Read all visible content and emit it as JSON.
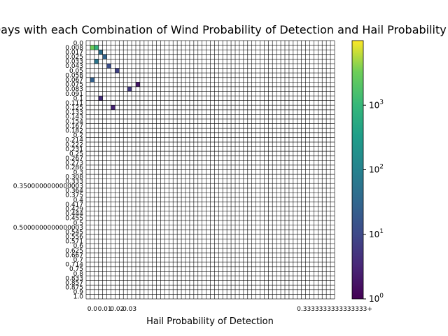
{
  "chart_data": {
    "type": "heatmap",
    "title": "Number of Days with each Combination of Wind Probability of Detection and Hail Probability of Detection",
    "xlabel": "Hail Probability of Detection",
    "ylabel": "",
    "colormap": "viridis",
    "color_scale": "log",
    "colorbar": {
      "min": 1,
      "max": 10000,
      "ticks": [
        "10^0",
        "10^1",
        "10^2",
        "10^3"
      ]
    },
    "x_tick_labels_visible": [
      "0.0",
      "0.01",
      "0.02",
      "0.03",
      "0.3333333333333333+"
    ],
    "y_tick_labels_visible": [
      "0.0",
      "0.008",
      "0.017",
      "0.025",
      "0.033",
      "0.043",
      "0.05",
      "0.058",
      "0.067",
      "0.075",
      "0.083",
      "0.091",
      "0.1",
      "0.111",
      "0.125",
      "0.133",
      "0.143",
      "0.154",
      "0.167",
      "0.182",
      "0.2",
      "0.214",
      "0.222",
      "0.231",
      "0.25",
      "0.267",
      "0.273",
      "0.286",
      "0.3",
      "0.308",
      "0.333",
      "0.3500000000000003",
      "0.364",
      "0.375",
      "0.4",
      "0.417",
      "0.429",
      "0.444",
      "0.455",
      "0.5",
      "0.5000000000000003",
      "0.545",
      "0.556",
      "0.571",
      "0.6",
      "0.625",
      "0.667",
      "0.7",
      "0.714",
      "0.75",
      "0.8",
      "0.833",
      "0.857",
      "0.875",
      "0.9",
      "1.0"
    ],
    "grid": true,
    "cells": [
      {
        "xi": 1,
        "yi": 1,
        "v": 3200
      },
      {
        "xi": 2,
        "yi": 1,
        "v": 800
      },
      {
        "xi": 3,
        "yi": 2,
        "v": 45
      },
      {
        "xi": 4,
        "yi": 3,
        "v": 30
      },
      {
        "xi": 2,
        "yi": 4,
        "v": 60
      },
      {
        "xi": 5,
        "yi": 5,
        "v": 12
      },
      {
        "xi": 7,
        "yi": 6,
        "v": 8
      },
      {
        "xi": 1,
        "yi": 8,
        "v": 25
      },
      {
        "xi": 10,
        "yi": 10,
        "v": 6
      },
      {
        "xi": 3,
        "yi": 12,
        "v": 4
      },
      {
        "xi": 6,
        "yi": 14,
        "v": 3
      },
      {
        "xi": 12,
        "yi": 9,
        "v": 2
      }
    ]
  }
}
